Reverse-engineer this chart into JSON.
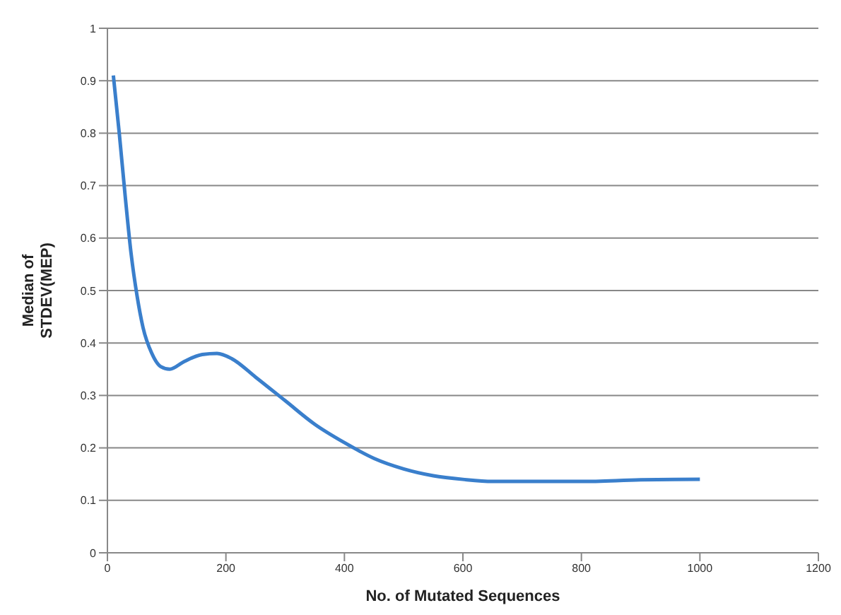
{
  "chart_data": {
    "type": "line",
    "xlabel": "No. of Mutated Sequences",
    "ylabel": "Median of\nSTDEV(MEP)",
    "x": [
      10,
      20,
      30,
      40,
      50,
      60,
      75,
      90,
      105,
      130,
      160,
      185,
      210,
      250,
      300,
      350,
      400,
      450,
      500,
      550,
      600,
      650,
      700,
      800,
      900,
      1000
    ],
    "series": [
      {
        "color": "#3a7fcc",
        "values": [
          0.91,
          0.8,
          0.68,
          0.57,
          0.49,
          0.43,
          0.38,
          0.355,
          0.35,
          0.365,
          0.378,
          0.38,
          0.37,
          0.335,
          0.29,
          0.245,
          0.21,
          0.18,
          0.16,
          0.147,
          0.14,
          0.136,
          0.136,
          0.136,
          0.139,
          0.14
        ]
      }
    ],
    "xlim": [
      0,
      1200
    ],
    "xticks": [
      0,
      200,
      400,
      600,
      800,
      1000,
      1200
    ],
    "ylim": [
      0,
      1
    ],
    "yticks": [
      0,
      0.1,
      0.2,
      0.3,
      0.4,
      0.5,
      0.6,
      0.7,
      0.8,
      0.9,
      1
    ],
    "grid": "y",
    "marker": "none",
    "line_style": "solid",
    "legend": false
  }
}
